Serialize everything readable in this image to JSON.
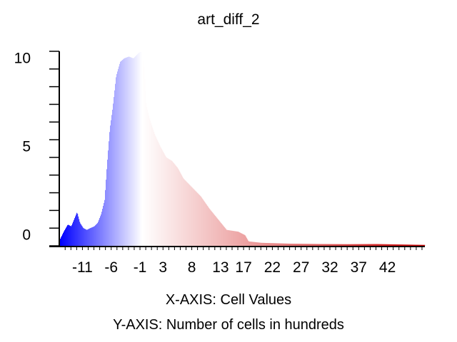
{
  "chart_data": {
    "type": "bar",
    "title": "art_diff_2",
    "xlabel": "X-AXIS: Cell Values",
    "ylabel": "Y-AXIS: Number of cells in hundreds",
    "xlim": [
      -14.9,
      48.5
    ],
    "ylim": [
      0,
      11
    ],
    "x_ticks": [
      -11,
      -6,
      -1,
      3,
      8,
      13,
      17,
      22,
      27,
      32,
      37,
      42
    ],
    "y_ticks": [
      0,
      5,
      10
    ],
    "color_scale": {
      "low": "#0000ff",
      "mid": "#ffffff",
      "high": "#cc0000",
      "low_value": -14.9,
      "mid_value": -0.7,
      "high_value": 48.5
    },
    "anchors": [
      [
        -14.9,
        0.4
      ],
      [
        -14.3,
        0.8
      ],
      [
        -13.6,
        1.2
      ],
      [
        -13.0,
        1.1
      ],
      [
        -12.5,
        1.5
      ],
      [
        -12.0,
        1.9
      ],
      [
        -11.5,
        1.3
      ],
      [
        -10.9,
        1.0
      ],
      [
        -10.3,
        0.9
      ],
      [
        -9.7,
        1.0
      ],
      [
        -9.0,
        1.1
      ],
      [
        -8.4,
        1.3
      ],
      [
        -7.8,
        1.8
      ],
      [
        -7.2,
        2.6
      ],
      [
        -6.8,
        4.5
      ],
      [
        -6.3,
        6.6
      ],
      [
        -5.8,
        7.8
      ],
      [
        -5.2,
        9.6
      ],
      [
        -4.5,
        10.4
      ],
      [
        -3.8,
        10.6
      ],
      [
        -3.0,
        10.7
      ],
      [
        -2.2,
        10.6
      ],
      [
        -1.3,
        10.9
      ],
      [
        -0.8,
        11.0
      ],
      [
        -0.4,
        10.2
      ],
      [
        0.0,
        8.0
      ],
      [
        0.6,
        7.2
      ],
      [
        1.5,
        6.3
      ],
      [
        2.5,
        5.6
      ],
      [
        3.5,
        5.0
      ],
      [
        4.5,
        4.8
      ],
      [
        5.5,
        4.4
      ],
      [
        6.5,
        3.8
      ],
      [
        8.0,
        3.3
      ],
      [
        9.5,
        2.8
      ],
      [
        11.0,
        2.1
      ],
      [
        12.5,
        1.5
      ],
      [
        14.0,
        0.9
      ],
      [
        16.0,
        0.8
      ],
      [
        17.2,
        0.6
      ],
      [
        17.8,
        0.25
      ],
      [
        20.0,
        0.17
      ],
      [
        25.0,
        0.12
      ],
      [
        30.0,
        0.1
      ],
      [
        35.0,
        0.09
      ],
      [
        40.0,
        0.1
      ],
      [
        45.0,
        0.07
      ],
      [
        48.5,
        0.05
      ]
    ]
  }
}
